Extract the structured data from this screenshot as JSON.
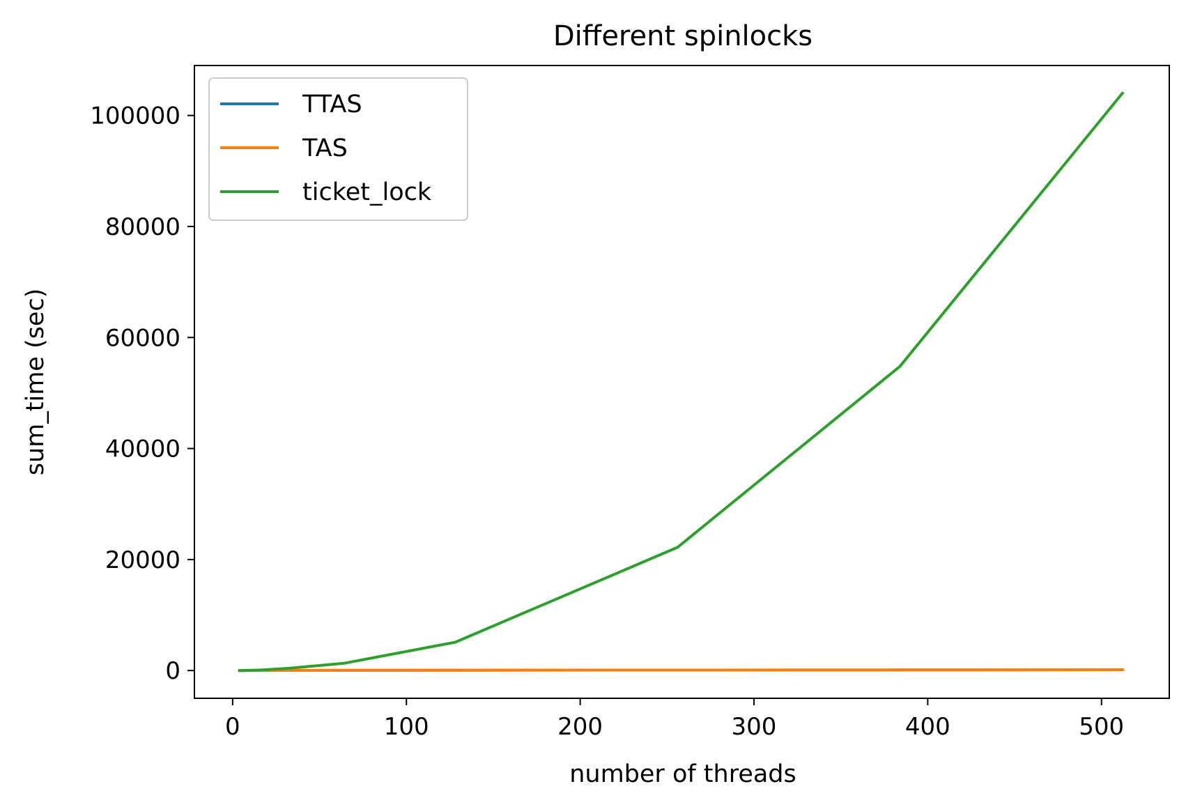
{
  "chart_data": {
    "type": "line",
    "title": "Different spinlocks",
    "xlabel": "number of threads",
    "ylabel": "sum_time (sec)",
    "xlim": [
      -22,
      539
    ],
    "ylim": [
      -5000,
      109000
    ],
    "xticks": [
      0,
      100,
      200,
      300,
      400,
      500
    ],
    "yticks": [
      0,
      20000,
      40000,
      60000,
      80000,
      100000
    ],
    "grid": false,
    "legend_position": "top-left",
    "series": [
      {
        "name": "TTAS",
        "color": "#1f77b4",
        "x": [
          4,
          8,
          16,
          32,
          64,
          128,
          256,
          384,
          512
        ],
        "y": [
          0,
          5,
          10,
          20,
          40,
          60,
          90,
          110,
          150
        ]
      },
      {
        "name": "TAS",
        "color": "#ff7f0e",
        "x": [
          4,
          8,
          16,
          32,
          64,
          128,
          256,
          384,
          512
        ],
        "y": [
          0,
          5,
          10,
          20,
          40,
          60,
          90,
          110,
          150
        ]
      },
      {
        "name": "ticket_lock",
        "color": "#2ca02c",
        "x": [
          4,
          8,
          16,
          32,
          64,
          128,
          256,
          384,
          512
        ],
        "y": [
          0,
          20,
          100,
          400,
          1300,
          5100,
          22200,
          54800,
          104000
        ]
      }
    ]
  }
}
